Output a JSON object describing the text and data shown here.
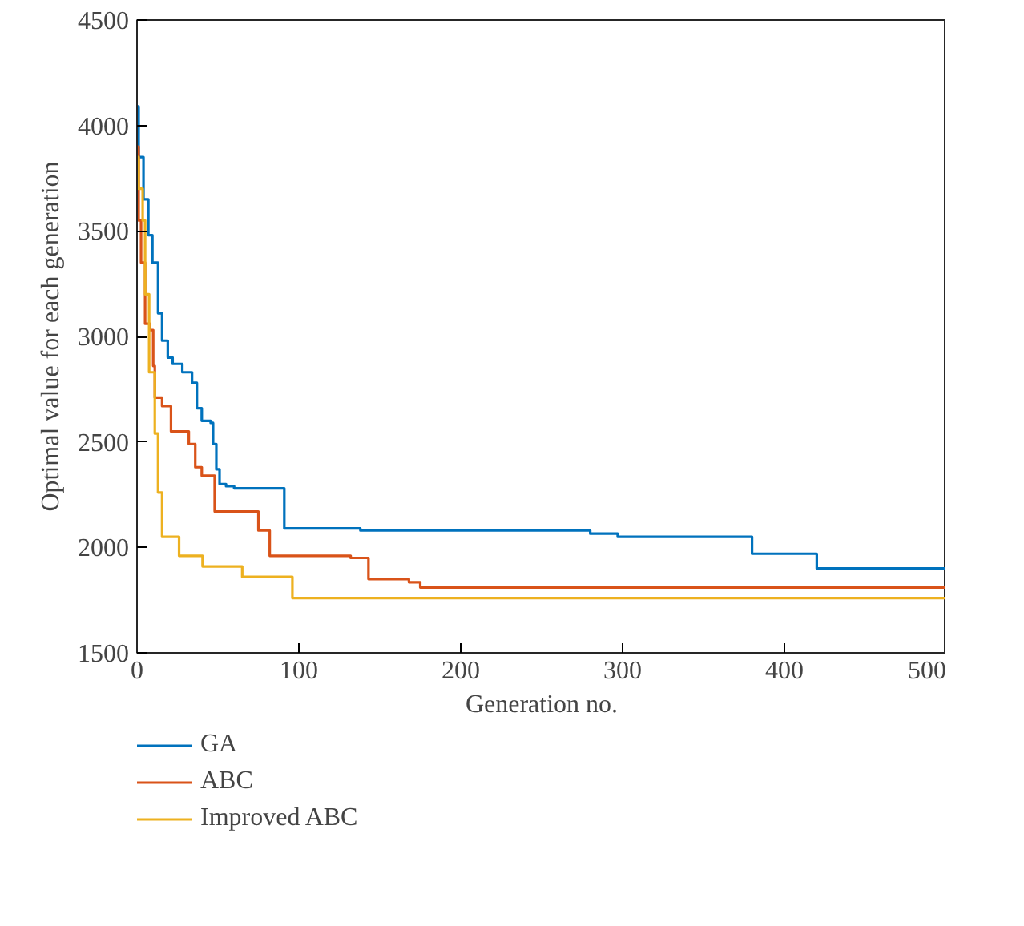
{
  "chart_data": {
    "type": "step",
    "xlabel": "Generation no.",
    "ylabel": "Optimal value for each generation",
    "xlim": [
      0,
      500
    ],
    "ylim": [
      1500,
      4500
    ],
    "xticks": [
      0,
      100,
      200,
      300,
      400,
      500
    ],
    "yticks": [
      1500,
      2000,
      2500,
      3000,
      3500,
      4000,
      4500
    ],
    "grid": false,
    "legend": "bottom",
    "series": [
      {
        "name": "GA",
        "color": "#0072bd",
        "x": [
          0,
          1,
          4,
          7,
          9.5,
          13,
          15.5,
          19,
          22,
          28,
          34,
          37,
          40,
          45.5,
          47,
          49,
          51,
          55,
          60,
          91,
          138,
          280,
          297,
          380,
          420,
          500
        ],
        "values": [
          4090,
          3850,
          3650,
          3480,
          3350,
          3110,
          2980,
          2900,
          2870,
          2830,
          2780,
          2660,
          2600,
          2590,
          2490,
          2370,
          2300,
          2290,
          2280,
          2090,
          2080,
          2065,
          2050,
          1970,
          1900,
          1900
        ]
      },
      {
        "name": "ABC",
        "color": "#d95319",
        "x": [
          0,
          1,
          2.5,
          5,
          8,
          10,
          11,
          15.5,
          21,
          32,
          36,
          40,
          48,
          75,
          82,
          132,
          143,
          168,
          175,
          500
        ],
        "values": [
          3900,
          3550,
          3350,
          3060,
          3030,
          2860,
          2710,
          2670,
          2550,
          2490,
          2380,
          2340,
          2170,
          2080,
          1960,
          1950,
          1850,
          1835,
          1810,
          1810
        ]
      },
      {
        "name": "Improved ABC",
        "color": "#edb120",
        "x": [
          0,
          1,
          3.5,
          5,
          7.5,
          11,
          13,
          15.5,
          26,
          40.5,
          65,
          96,
          500
        ],
        "values": [
          3850,
          3700,
          3550,
          3200,
          2830,
          2540,
          2260,
          2050,
          1960,
          1910,
          1860,
          1760,
          1760
        ]
      }
    ]
  }
}
